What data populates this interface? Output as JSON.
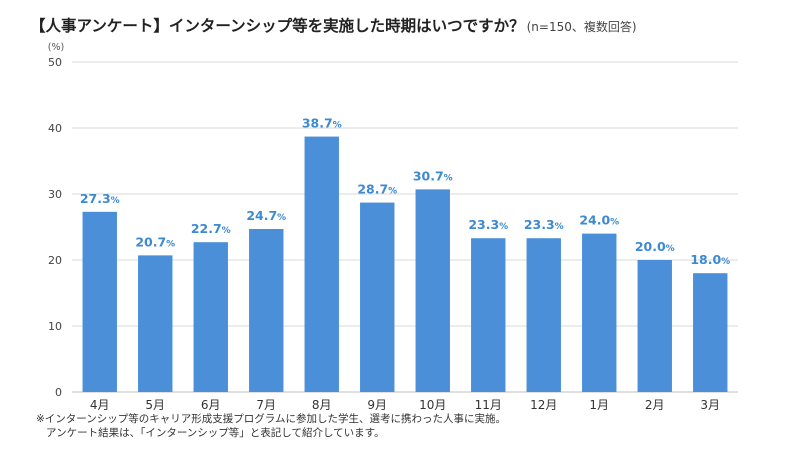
{
  "title": {
    "main": "【人事アンケート】インターンシップ等を実施した時期はいつですか？",
    "note": "(n=150、複数回答)"
  },
  "chart_data": {
    "type": "bar",
    "unit_label": "(%)",
    "categories": [
      "4月",
      "5月",
      "6月",
      "7月",
      "8月",
      "9月",
      "10月",
      "11月",
      "12月",
      "1月",
      "2月",
      "3月"
    ],
    "values": [
      27.3,
      20.7,
      22.7,
      24.7,
      38.7,
      28.7,
      30.7,
      23.3,
      23.3,
      24.0,
      20.0,
      18.0
    ],
    "value_labels": [
      "27.3",
      "20.7",
      "22.7",
      "24.7",
      "38.7",
      "28.7",
      "30.7",
      "23.3",
      "23.3",
      "24.0",
      "20.0",
      "18.0"
    ],
    "value_suffix": "%",
    "ylim": [
      0,
      50
    ],
    "yticks": [
      0,
      10,
      20,
      30,
      40,
      50
    ],
    "grid": true,
    "bar_color": "#4a8fd8",
    "label_color": "#3d8ad3"
  },
  "footnote": {
    "line1": "※インターンシップ等のキャリア形成支援プログラムに参加した学生、選考に携わった人事に実施。",
    "line2": "アンケート結果は、「インターンシップ等」と表記して紹介しています。"
  }
}
